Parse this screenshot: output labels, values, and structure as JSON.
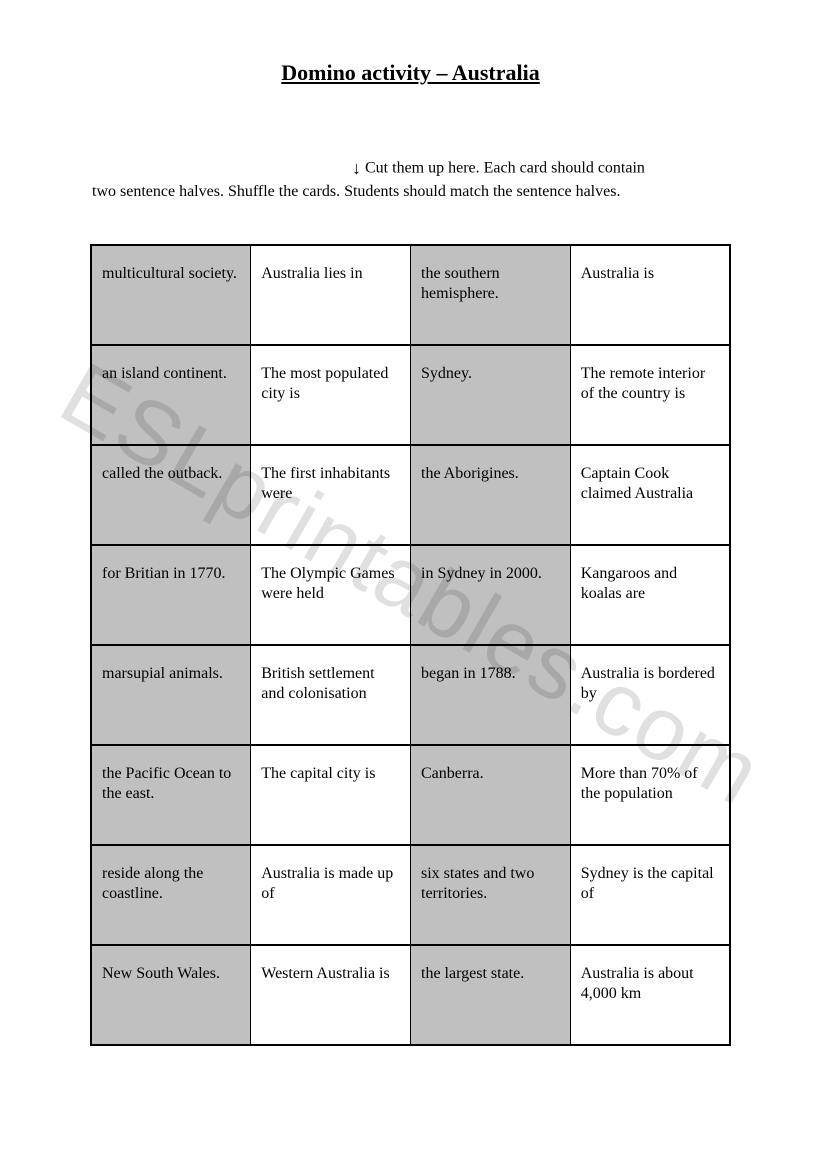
{
  "title": "Domino activity – Australia",
  "instructions_line1_prefix": "↓",
  "instructions_line1": " Cut them up here. Each card should contain",
  "instructions_line2": "two sentence halves. Shuffle the cards. Students should match the sentence halves.",
  "watermark": "ESLprintables.com",
  "table": {
    "rows": [
      [
        {
          "text": "multicultural society.",
          "bg": "grey"
        },
        {
          "text": "Australia lies in",
          "bg": "white"
        },
        {
          "text": "the southern hemisphere.",
          "bg": "grey"
        },
        {
          "text": "Australia is",
          "bg": "white"
        }
      ],
      [
        {
          "text": "an island continent.",
          "bg": "grey"
        },
        {
          "text": "The most populated city is",
          "bg": "white"
        },
        {
          "text": "Sydney.",
          "bg": "grey"
        },
        {
          "text": "The remote interior of the country is",
          "bg": "white"
        }
      ],
      [
        {
          "text": "called the outback.",
          "bg": "grey"
        },
        {
          "text": "The first inhabitants were",
          "bg": "white"
        },
        {
          "text": "the Aborigines.",
          "bg": "grey"
        },
        {
          "text": "Captain Cook claimed Australia",
          "bg": "white"
        }
      ],
      [
        {
          "text": "for Britian in 1770.",
          "bg": "grey"
        },
        {
          "text": "The Olympic Games were held",
          "bg": "white"
        },
        {
          "text": "in Sydney in 2000.",
          "bg": "grey"
        },
        {
          "text": "Kangaroos and koalas are",
          "bg": "white"
        }
      ],
      [
        {
          "text": "marsupial animals.",
          "bg": "grey"
        },
        {
          "text": "British settlement and colonisation",
          "bg": "white"
        },
        {
          "text": "began in 1788.",
          "bg": "grey"
        },
        {
          "text": "Australia is bordered by",
          "bg": "white"
        }
      ],
      [
        {
          "text": "the Pacific Ocean to the east.",
          "bg": "grey"
        },
        {
          "text": "The capital city is",
          "bg": "white"
        },
        {
          "text": "Canberra.",
          "bg": "grey"
        },
        {
          "text": "More than 70% of the population",
          "bg": "white"
        }
      ],
      [
        {
          "text": "reside along the coastline.",
          "bg": "grey"
        },
        {
          "text": "Australia is made up of",
          "bg": "white"
        },
        {
          "text": "six states and two territories.",
          "bg": "grey"
        },
        {
          "text": "Sydney is the capital of",
          "bg": "white"
        }
      ],
      [
        {
          "text": "New South Wales.",
          "bg": "grey"
        },
        {
          "text": "Western Australia is",
          "bg": "white"
        },
        {
          "text": "the largest state.",
          "bg": "grey"
        },
        {
          "text": "Australia is about 4,000 km",
          "bg": "white"
        }
      ]
    ],
    "cell_bg_grey": "#c0c0c0",
    "cell_bg_white": "#ffffff",
    "border_color": "#000000",
    "font_size": 16
  }
}
